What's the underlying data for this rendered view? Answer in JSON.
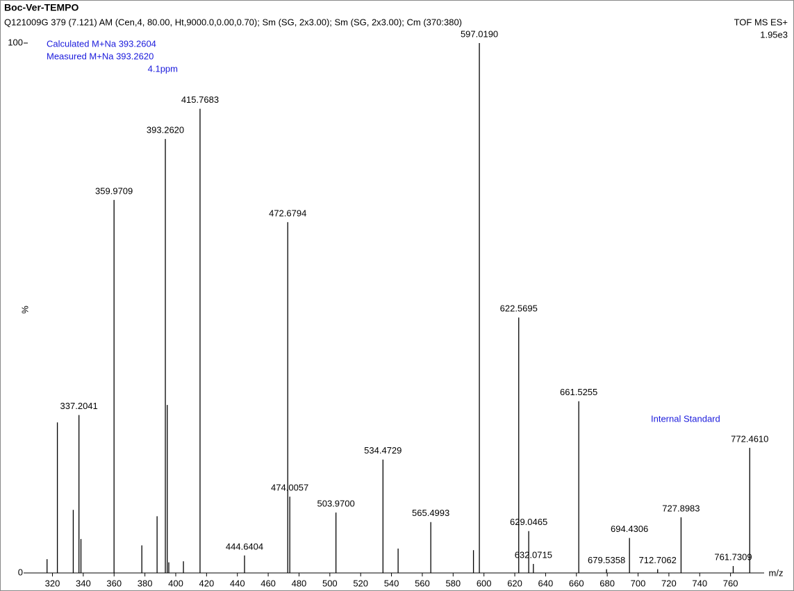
{
  "chart_data": {
    "type": "spectrum",
    "title": "Boc-Ver-TEMPO",
    "subtitle": "Q121009G 379 (7.121) AM (Cen,4, 80.00, Ht,9000.0,0.00,0.70); Sm (SG, 2x3.00); Sm (SG, 2x3.00); Cm (370:380)",
    "instrument": "TOF MS ES+",
    "intensity": "1.95e3",
    "x_label": "m/z",
    "y_label": "%",
    "annotations": [
      "Calculated M+Na 393.2604",
      "Measured  M+Na 393.2620",
      "4.1ppm",
      "Internal Standard"
    ],
    "xlim": [
      304,
      780
    ],
    "ylim": [
      0,
      100
    ],
    "xticks": [
      320,
      340,
      360,
      380,
      400,
      420,
      440,
      460,
      480,
      500,
      520,
      540,
      560,
      580,
      600,
      620,
      640,
      660,
      680,
      700,
      720,
      740,
      760
    ],
    "yticks": [
      0,
      100
    ],
    "color": "#000000",
    "label_color": "#000000",
    "series": [
      {
        "name": "peaks",
        "x": [
          597.019,
          415.7683,
          393.262,
          359.9709,
          472.6794,
          622.5695,
          661.5255,
          337.2041,
          772.461,
          534.4729,
          474.0057,
          503.97,
          565.4993,
          629.0465,
          727.8983,
          694.4306,
          444.6404,
          632.0715,
          679.5358,
          712.7062,
          761.7309,
          323.2,
          333.5,
          338.5,
          394.5,
          387.9,
          378.0,
          544.3,
          593.2,
          316.5,
          405.0,
          395.5
        ],
        "values": [
          100,
          87.6,
          81.9,
          70.4,
          66.2,
          48.2,
          32.4,
          29.8,
          23.6,
          21.4,
          14.4,
          11.4,
          9.6,
          7.9,
          10.5,
          6.6,
          3.3,
          1.7,
          0.7,
          0.7,
          1.3,
          28.4,
          11.9,
          6.4,
          31.7,
          10.7,
          5.2,
          4.6,
          4.3,
          2.6,
          2.2,
          2.0
        ],
        "value_labels": [
          "597.0190",
          "415.7683",
          "393.2620",
          "359.9709",
          "472.6794",
          "622.5695",
          "661.5255",
          "337.2041",
          "772.4610",
          "534.4729",
          "474.0057",
          "503.9700",
          "565.4993",
          "629.0465",
          "727.8983",
          "694.4306",
          "444.6404",
          "632.0715",
          "679.5358",
          "712.7062",
          "761.7309",
          null,
          null,
          null,
          null,
          null,
          null,
          null,
          null,
          null,
          null,
          null
        ]
      }
    ]
  }
}
